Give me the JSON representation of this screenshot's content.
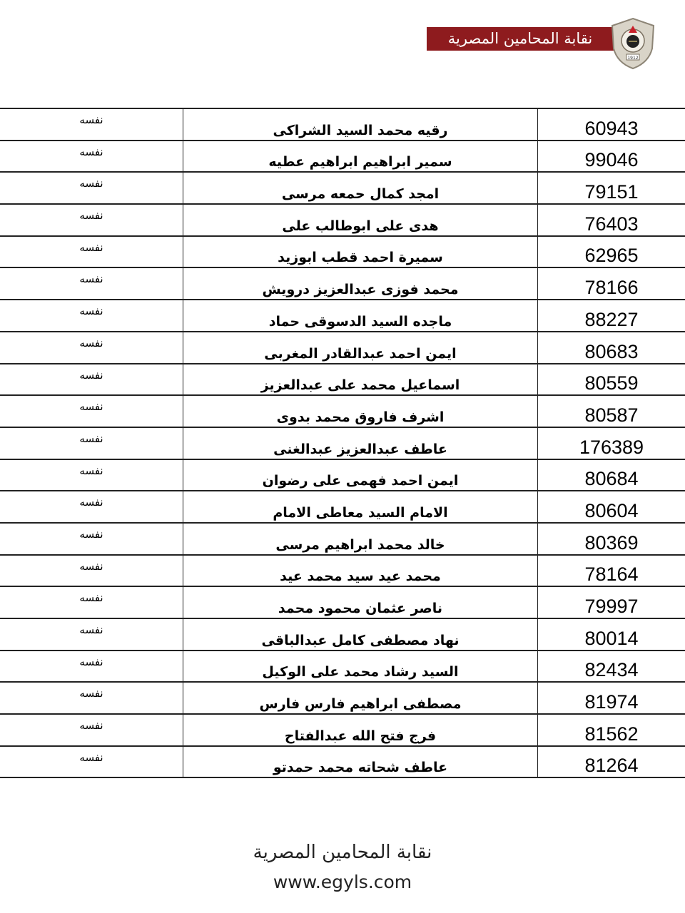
{
  "header": {
    "logo_text": "نقابة المحامين المصرية",
    "seal_year": "1912",
    "brand_color": "#8e1b1e"
  },
  "rows": [
    {
      "number": "60943",
      "name": "رقيه محمد السيد الشراكى",
      "relation": "نفسه"
    },
    {
      "number": "99046",
      "name": "سمير ابراهيم ابراهيم عطيه",
      "relation": "نفسه"
    },
    {
      "number": "79151",
      "name": "امجد كمال حمعه مرسى",
      "relation": "نفسه"
    },
    {
      "number": "76403",
      "name": "هدى على ابوطالب على",
      "relation": "نفسه"
    },
    {
      "number": "62965",
      "name": "سميرة احمد قطب ابوزيد",
      "relation": "نفسه"
    },
    {
      "number": "78166",
      "name": "محمد فوزى عبدالعزيز درويش",
      "relation": "نفسه"
    },
    {
      "number": "88227",
      "name": "ماجده السيد الدسوقى حماد",
      "relation": "نفسه"
    },
    {
      "number": "80683",
      "name": "ايمن احمد عبدالقادر المغربى",
      "relation": "نفسه"
    },
    {
      "number": "80559",
      "name": "اسماعيل محمد على عبدالعزيز",
      "relation": "نفسه"
    },
    {
      "number": "80587",
      "name": "اشرف فاروق محمد بدوى",
      "relation": "نفسه"
    },
    {
      "number": "176389",
      "name": "عاطف عبدالعزيز عبدالغنى",
      "relation": "نفسه"
    },
    {
      "number": "80684",
      "name": "ايمن احمد فهمى على رضوان",
      "relation": "نفسه"
    },
    {
      "number": "80604",
      "name": "الامام السيد معاطى الامام",
      "relation": "نفسه"
    },
    {
      "number": "80369",
      "name": "خالد محمد ابراهيم مرسى",
      "relation": "نفسه"
    },
    {
      "number": "78164",
      "name": "محمد عيد سيد محمد عيد",
      "relation": "نفسه"
    },
    {
      "number": "79997",
      "name": "ناصر عثمان محمود محمد",
      "relation": "نفسه"
    },
    {
      "number": "80014",
      "name": "نهاد مصطفى كامل عبدالباقى",
      "relation": "نفسه"
    },
    {
      "number": "82434",
      "name": "السيد رشاد محمد على الوكيل",
      "relation": "نفسه"
    },
    {
      "number": "81974",
      "name": "مصطفى ابراهيم فارس فارس",
      "relation": "نفسه"
    },
    {
      "number": "81562",
      "name": "فرج فتح الله عبدالفتاح",
      "relation": "نفسه"
    },
    {
      "number": "81264",
      "name": "عاطف شحاته محمد حمدتو",
      "relation": "نفسه"
    }
  ],
  "footer": {
    "org_name": "نقابة المحامين المصرية",
    "website": "www.egyls.com"
  }
}
